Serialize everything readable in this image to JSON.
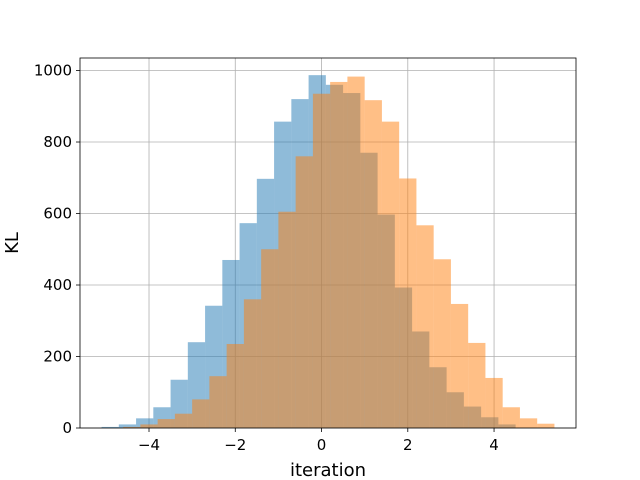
{
  "chart_data": {
    "type": "bar",
    "title": "",
    "xlabel": "iteration",
    "ylabel": "KL",
    "xlim": [
      -5.6,
      5.9
    ],
    "ylim": [
      0,
      1035
    ],
    "xticks": [
      -4,
      -2,
      0,
      2,
      4
    ],
    "xtick_labels": [
      "−4",
      "−2",
      "0",
      "2",
      "4"
    ],
    "yticks": [
      0,
      200,
      400,
      600,
      800,
      1000
    ],
    "ytick_labels": [
      "0",
      "200",
      "400",
      "600",
      "800",
      "1000"
    ],
    "grid": true,
    "legend": "none",
    "series": [
      {
        "color": "#1f77b4",
        "opacity": 0.5,
        "bin_edges": [
          -5.1,
          -4.7,
          -4.3,
          -3.9,
          -3.5,
          -3.1,
          -2.7,
          -2.3,
          -1.9,
          -1.5,
          -1.1,
          -0.7,
          -0.3,
          0.1,
          0.5,
          0.9,
          1.3,
          1.7,
          2.1,
          2.5,
          2.9,
          3.3,
          3.7,
          4.1,
          4.5
        ],
        "counts": [
          3,
          10,
          27,
          58,
          135,
          240,
          342,
          470,
          573,
          697,
          857,
          920,
          987,
          960,
          937,
          770,
          597,
          393,
          270,
          170,
          100,
          60,
          30,
          10
        ]
      },
      {
        "color": "#ff7f0e",
        "opacity": 0.5,
        "bin_edges": [
          -4.6,
          -4.2,
          -3.8,
          -3.4,
          -3.0,
          -2.6,
          -2.2,
          -1.8,
          -1.4,
          -1.0,
          -0.6,
          -0.2,
          0.2,
          0.6,
          1.0,
          1.4,
          1.8,
          2.2,
          2.6,
          3.0,
          3.4,
          3.8,
          4.2,
          4.6,
          5.0,
          5.4
        ],
        "counts": [
          3,
          10,
          25,
          40,
          80,
          145,
          235,
          360,
          500,
          605,
          760,
          935,
          968,
          983,
          917,
          857,
          698,
          567,
          472,
          347,
          238,
          140,
          58,
          27,
          12
        ]
      }
    ]
  }
}
